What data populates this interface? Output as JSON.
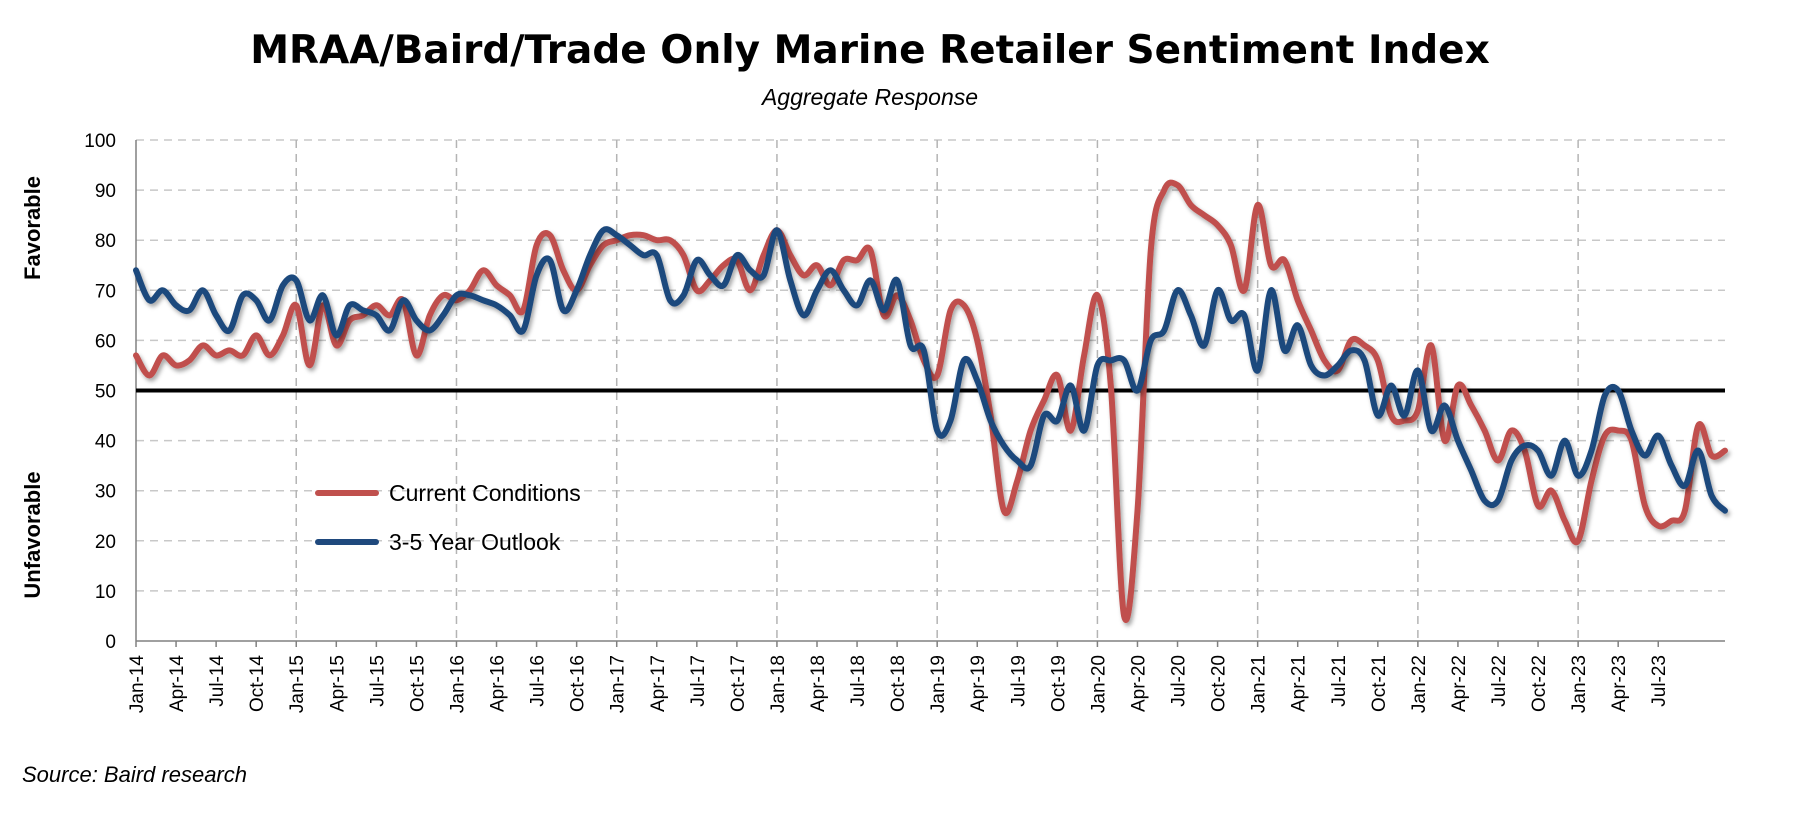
{
  "chart_data": {
    "type": "line",
    "title": "MRAA/Baird/Trade Only Marine Retailer Sentiment Index",
    "subtitle": "Aggregate Response",
    "source": "Source: Baird research",
    "ylabel_top": "Favorable",
    "ylabel_bottom": "Unfavorable",
    "ylim": [
      0,
      100
    ],
    "yticks": [
      0,
      10,
      20,
      30,
      40,
      50,
      60,
      70,
      80,
      90,
      100
    ],
    "reference_line": 50,
    "grid": true,
    "legend_position": "lower-left",
    "x_start": "Jan-14",
    "x_end": "Aug-23",
    "x_tick_labels": [
      "Jan-14",
      "Apr-14",
      "Jul-14",
      "Oct-14",
      "Jan-15",
      "Apr-15",
      "Jul-15",
      "Oct-15",
      "Jan-16",
      "Apr-16",
      "Jul-16",
      "Oct-16",
      "Jan-17",
      "Apr-17",
      "Jul-17",
      "Oct-17",
      "Jan-18",
      "Apr-18",
      "Jul-18",
      "Oct-18",
      "Jan-19",
      "Apr-19",
      "Jul-19",
      "Oct-19",
      "Jan-20",
      "Apr-20",
      "Jul-20",
      "Oct-20",
      "Jan-21",
      "Apr-21",
      "Jul-21",
      "Oct-21",
      "Jan-22",
      "Apr-22",
      "Jul-22",
      "Oct-22",
      "Jan-23",
      "Apr-23",
      "Jul-23"
    ],
    "series": [
      {
        "name": "Current Conditions",
        "color": "#C0504D",
        "values": [
          57,
          53,
          57,
          55,
          56,
          59,
          57,
          58,
          57,
          61,
          57,
          61,
          67,
          55,
          67,
          59,
          64,
          65,
          67,
          65,
          68,
          57,
          65,
          69,
          68,
          70,
          74,
          71,
          69,
          66,
          79,
          81,
          74,
          70,
          75,
          79,
          80,
          81,
          81,
          80,
          80,
          77,
          70,
          72,
          75,
          76,
          70,
          77,
          82,
          77,
          73,
          75,
          71,
          76,
          76,
          78,
          65,
          69,
          64,
          56,
          53,
          66,
          67,
          60,
          45,
          26,
          32,
          42,
          48,
          53,
          42,
          57,
          69,
          51,
          5,
          26,
          78,
          90,
          91,
          87,
          85,
          83,
          79,
          70,
          87,
          75,
          76,
          68,
          62,
          56,
          54,
          60,
          59,
          56,
          45,
          44,
          46,
          59,
          40,
          51,
          47,
          42,
          36,
          42,
          38,
          27,
          30,
          24,
          20,
          32,
          41,
          42,
          40,
          27,
          23,
          24,
          26,
          43,
          37,
          38
        ]
      },
      {
        "name": "3-5 Year Outlook",
        "color": "#1F497D",
        "values": [
          74,
          68,
          70,
          67,
          66,
          70,
          65,
          62,
          69,
          68,
          64,
          71,
          72,
          64,
          69,
          61,
          67,
          66,
          65,
          62,
          68,
          64,
          62,
          65,
          69,
          69,
          68,
          67,
          65,
          62,
          73,
          76,
          66,
          70,
          77,
          82,
          81,
          79,
          77,
          77,
          68,
          69,
          76,
          73,
          71,
          77,
          74,
          73,
          82,
          72,
          65,
          70,
          74,
          70,
          67,
          72,
          66,
          72,
          59,
          58,
          42,
          44,
          56,
          52,
          44,
          39,
          36,
          35,
          45,
          44,
          51,
          42,
          55,
          56,
          56,
          50,
          60,
          62,
          70,
          65,
          59,
          70,
          64,
          65,
          54,
          70,
          58,
          63,
          55,
          53,
          55,
          58,
          56,
          45,
          51,
          45,
          54,
          42,
          47,
          40,
          34,
          28,
          28,
          36,
          39,
          38,
          33,
          40,
          33,
          38,
          49,
          50,
          42,
          37,
          41,
          35,
          31,
          38,
          29,
          26
        ]
      }
    ]
  }
}
